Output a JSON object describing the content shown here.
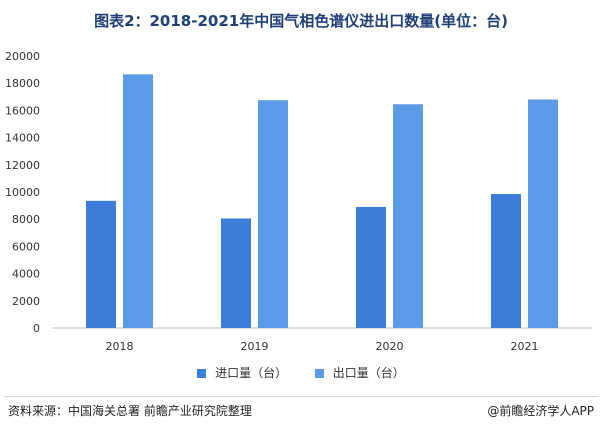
{
  "title": "图表2：2018-2021年中国气相色谱仪进出口数量(单位：台)",
  "legend": {
    "import_label": "进口量（台）",
    "export_label": "出口量（台）"
  },
  "footer": {
    "source": "资料来源：中国海关总署 前瞻产业研究院整理",
    "credit": "@前瞻经济学人APP"
  },
  "colors": {
    "import": "#3b7dd8",
    "export": "#5a9ae6",
    "grid": "#d9d9d9",
    "axis": "#bfbfbf"
  },
  "chart_data": {
    "type": "bar",
    "title": "图表2：2018-2021年中国气相色谱仪进出口数量(单位：台)",
    "categories": [
      "2018",
      "2019",
      "2020",
      "2021"
    ],
    "series": [
      {
        "name": "进口量（台）",
        "values": [
          9350,
          8050,
          8900,
          9850
        ]
      },
      {
        "name": "出口量（台）",
        "values": [
          18650,
          16750,
          16450,
          16800
        ]
      }
    ],
    "ylim": [
      0,
      20000
    ],
    "yticks": [
      "0",
      "2000",
      "4000",
      "6000",
      "8000",
      "10000",
      "12000",
      "14000",
      "16000",
      "18000",
      "20000"
    ],
    "xlabel": "",
    "ylabel": "",
    "grid": false,
    "legend_position": "bottom"
  }
}
